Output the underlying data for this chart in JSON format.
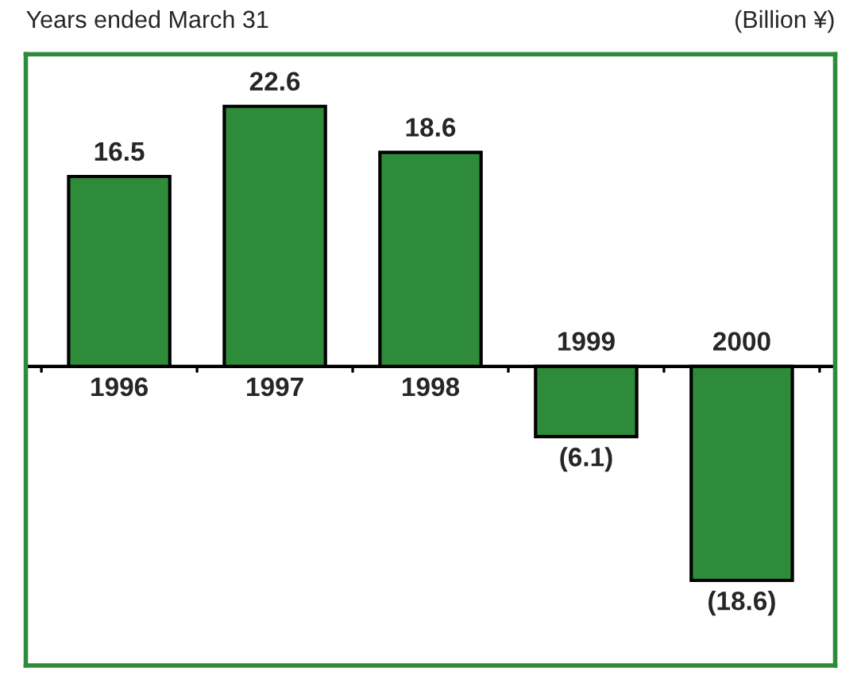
{
  "chart_data": {
    "type": "bar",
    "title": "Years ended March 31",
    "annotations": [
      "(Billion ¥)"
    ],
    "categories": [
      "1996",
      "1997",
      "1998",
      "1999",
      "2000"
    ],
    "values": [
      16.5,
      22.6,
      18.6,
      -6.1,
      -18.6
    ],
    "value_labels": [
      "16.5",
      "22.6",
      "18.6",
      "(6.1)",
      "(18.6)"
    ],
    "color": "#2e8b3a"
  }
}
